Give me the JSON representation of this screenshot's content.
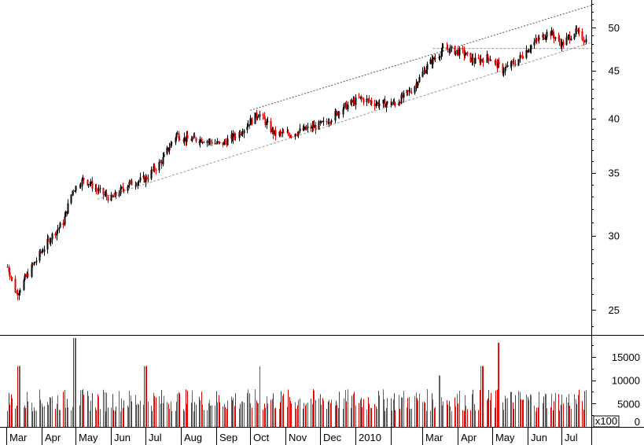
{
  "chart_data": [
    {
      "type": "candlestick",
      "title": "",
      "y_scale": "log",
      "ylim": [
        23.5,
        53.5
      ],
      "y_ticks": [
        "25",
        "30",
        "35",
        "40",
        "45",
        "50"
      ],
      "x_tick_labels": [
        "Mar",
        "Apr",
        "May",
        "Jun",
        "Jul",
        "Aug",
        "Sep",
        "Oct",
        "Nov",
        "Dec",
        "2010",
        "Mar",
        "Apr",
        "May",
        "Jun",
        "Jul"
      ],
      "colors": {
        "up": "#000000",
        "down": "#dd0000",
        "trendline": "#555555",
        "support": "#999999"
      },
      "approx_close_path": [
        {
          "date": "2009-03-01",
          "close": 28.0
        },
        {
          "date": "2009-03-10",
          "close": 26.0
        },
        {
          "date": "2009-03-25",
          "close": 28.0
        },
        {
          "date": "2009-04-10",
          "close": 30.0
        },
        {
          "date": "2009-04-20",
          "close": 31.0
        },
        {
          "date": "2009-04-28",
          "close": 33.5
        },
        {
          "date": "2009-05-08",
          "close": 34.5
        },
        {
          "date": "2009-05-20",
          "close": 33.5
        },
        {
          "date": "2009-06-01",
          "close": 32.8
        },
        {
          "date": "2009-06-15",
          "close": 34.0
        },
        {
          "date": "2009-07-01",
          "close": 34.5
        },
        {
          "date": "2009-07-15",
          "close": 36.0
        },
        {
          "date": "2009-07-28",
          "close": 38.5
        },
        {
          "date": "2009-08-05",
          "close": 38.0
        },
        {
          "date": "2009-08-20",
          "close": 38.0
        },
        {
          "date": "2009-09-05",
          "close": 37.5
        },
        {
          "date": "2009-09-20",
          "close": 38.5
        },
        {
          "date": "2009-10-08",
          "close": 40.5
        },
        {
          "date": "2009-10-22",
          "close": 38.5
        },
        {
          "date": "2009-11-05",
          "close": 38.5
        },
        {
          "date": "2009-11-20",
          "close": 39.0
        },
        {
          "date": "2009-12-05",
          "close": 39.5
        },
        {
          "date": "2009-12-20",
          "close": 41.0
        },
        {
          "date": "2010-01-05",
          "close": 42.0
        },
        {
          "date": "2010-01-20",
          "close": 41.5
        },
        {
          "date": "2010-02-05",
          "close": 41.5
        },
        {
          "date": "2010-02-20",
          "close": 43.0
        },
        {
          "date": "2010-03-05",
          "close": 45.5
        },
        {
          "date": "2010-03-20",
          "close": 47.5
        },
        {
          "date": "2010-04-05",
          "close": 47.0
        },
        {
          "date": "2010-04-15",
          "close": 46.0
        },
        {
          "date": "2010-04-28",
          "close": 46.5
        },
        {
          "date": "2010-05-10",
          "close": 45.0
        },
        {
          "date": "2010-05-22",
          "close": 46.0
        },
        {
          "date": "2010-06-05",
          "close": 48.0
        },
        {
          "date": "2010-06-20",
          "close": 49.5
        },
        {
          "date": "2010-07-01",
          "close": 48.0
        },
        {
          "date": "2010-07-12",
          "close": 49.5
        },
        {
          "date": "2010-07-22",
          "close": 48.5
        }
      ]
    },
    {
      "type": "bar",
      "title": "",
      "series_label": "volume",
      "ylim": [
        0,
        19000
      ],
      "y_ticks": [
        "15000",
        "10000",
        "5000",
        "0"
      ],
      "unit_label": "x100",
      "typical_volume": 6000,
      "volume_spikes": [
        {
          "date": "2009-03-12",
          "volume": 13000
        },
        {
          "date": "2009-04-30",
          "volume": 19000
        },
        {
          "date": "2009-07-01",
          "volume": 13000
        },
        {
          "date": "2009-10-10",
          "volume": 13000
        },
        {
          "date": "2010-03-15",
          "volume": 11000
        },
        {
          "date": "2010-04-22",
          "volume": 13000
        },
        {
          "date": "2010-05-07",
          "volume": 18000
        }
      ]
    }
  ]
}
